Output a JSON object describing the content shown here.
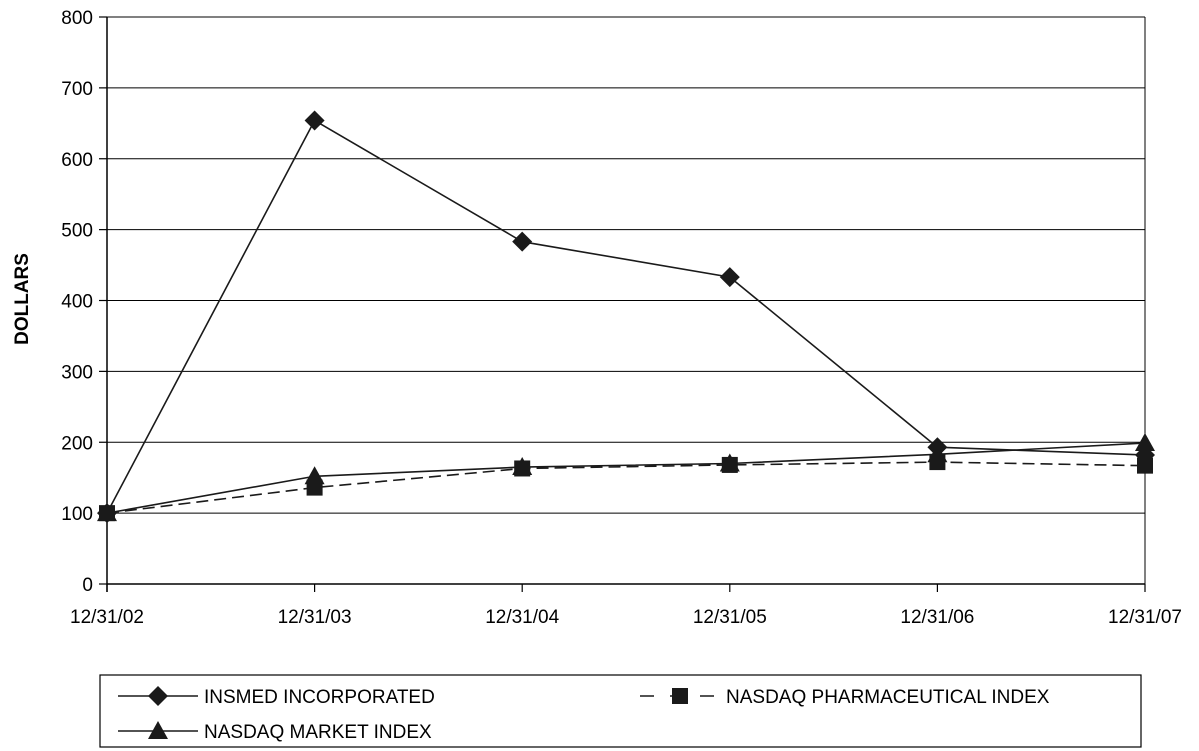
{
  "chart_data": {
    "type": "line",
    "title": "",
    "xlabel": "",
    "ylabel": "DOLLARS",
    "categories": [
      "12/31/02",
      "12/31/03",
      "12/31/04",
      "12/31/05",
      "12/31/06",
      "12/31/07"
    ],
    "ylim": [
      0,
      800
    ],
    "yticks": [
      0,
      100,
      200,
      300,
      400,
      500,
      600,
      700,
      800
    ],
    "grid": true,
    "legend_position": "bottom",
    "series": [
      {
        "name": "INSMED INCORPORATED",
        "marker": "diamond",
        "line_style": "solid",
        "values": [
          100,
          654,
          483,
          433,
          193,
          182
        ]
      },
      {
        "name": "NASDAQ PHARMACEUTICAL INDEX",
        "marker": "square",
        "line_style": "dashed",
        "values": [
          100,
          136,
          163,
          168,
          172,
          167
        ]
      },
      {
        "name": "NASDAQ MARKET INDEX",
        "marker": "triangle",
        "line_style": "solid",
        "values": [
          100,
          152,
          165,
          170,
          183,
          199
        ]
      }
    ]
  }
}
